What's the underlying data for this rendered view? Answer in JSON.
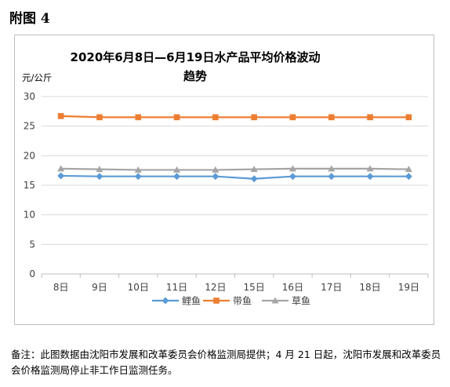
{
  "figure_label": "附图 4",
  "note": "备注：此图数据由沈阳市发展和改革委员会价格监测局提供；4 月 21 日起，沈阳市发展和改革委员会价格监测局停止非工作日监测任务。",
  "colors": {
    "鲤鱼": "#5b9bd5",
    "带鱼": "#ed7d31",
    "草鱼": "#a5a5a5",
    "grid": "#d9d9d9",
    "axis": "#bfbfbf"
  },
  "chart_data": {
    "type": "line",
    "title": [
      "2020年6月8日—6月19日水产品平均价格波动",
      "趋势"
    ],
    "ylabel": "元/公斤",
    "xlabel": "",
    "categories": [
      "8日",
      "9日",
      "10日",
      "11日",
      "12日",
      "15日",
      "16日",
      "17日",
      "18日",
      "19日"
    ],
    "ylim": [
      0,
      30
    ],
    "yticks": [
      0,
      5,
      10,
      15,
      20,
      25,
      30
    ],
    "grid": true,
    "legend": "bottom",
    "series": [
      {
        "name": "鲤鱼",
        "marker": "diamond",
        "values": [
          16.6,
          16.5,
          16.5,
          16.5,
          16.5,
          16.1,
          16.5,
          16.5,
          16.5,
          16.5
        ]
      },
      {
        "name": "带鱼",
        "marker": "square",
        "values": [
          26.7,
          26.5,
          26.5,
          26.5,
          26.5,
          26.5,
          26.5,
          26.5,
          26.5,
          26.5
        ]
      },
      {
        "name": "草鱼",
        "marker": "triangle",
        "values": [
          17.8,
          17.7,
          17.6,
          17.6,
          17.6,
          17.7,
          17.8,
          17.8,
          17.8,
          17.7
        ]
      }
    ]
  }
}
